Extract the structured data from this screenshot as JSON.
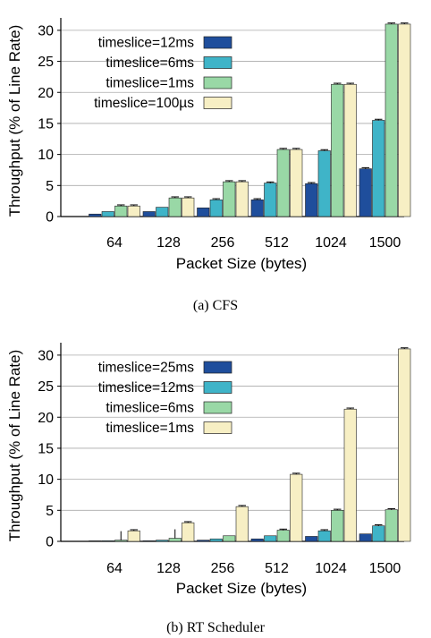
{
  "chart_data": [
    {
      "type": "bar",
      "caption": "(a) CFS",
      "xlabel": "Packet Size (bytes)",
      "ylabel": "Throughput (% of Line Rate)",
      "categories": [
        "64",
        "128",
        "256",
        "512",
        "1024",
        "1500"
      ],
      "ylim": [
        0,
        32
      ],
      "yticks": [
        0,
        5,
        10,
        15,
        20,
        25,
        30
      ],
      "grid": true,
      "legend_position": "top-left",
      "series": [
        {
          "name": "timeslice=12ms",
          "values": [
            0.4,
            0.8,
            1.4,
            2.7,
            5.3,
            7.7
          ]
        },
        {
          "name": "timeslice=6ms",
          "values": [
            0.8,
            1.5,
            2.7,
            5.4,
            10.6,
            15.5
          ]
        },
        {
          "name": "timeslice=1ms",
          "values": [
            1.7,
            3.0,
            5.6,
            10.8,
            21.3,
            31.0
          ]
        },
        {
          "name": "timeslice=100µs",
          "values": [
            1.7,
            3.0,
            5.6,
            10.8,
            21.3,
            31.0
          ]
        }
      ]
    },
    {
      "type": "bar",
      "caption": "(b) RT Scheduler",
      "xlabel": "Packet Size (bytes)",
      "ylabel": "Throughput (% of Line Rate)",
      "categories": [
        "64",
        "128",
        "256",
        "512",
        "1024",
        "1500"
      ],
      "ylim": [
        0,
        32
      ],
      "yticks": [
        0,
        5,
        10,
        15,
        20,
        25,
        30
      ],
      "grid": true,
      "legend_position": "top-left",
      "series": [
        {
          "name": "timeslice=25ms",
          "values": [
            0.05,
            0.1,
            0.2,
            0.4,
            0.8,
            1.2
          ]
        },
        {
          "name": "timeslice=12ms",
          "values": [
            0.1,
            0.2,
            0.4,
            0.9,
            1.7,
            2.5
          ]
        },
        {
          "name": "timeslice=6ms",
          "values": [
            0.2,
            0.5,
            0.9,
            1.8,
            5.0,
            5.1
          ]
        },
        {
          "name": "timeslice=1ms",
          "values": [
            1.7,
            3.0,
            5.6,
            10.8,
            21.3,
            31.0
          ]
        }
      ]
    }
  ],
  "colors": {
    "series": [
      "#1f4e9c",
      "#3fb4c8",
      "#99d8a6",
      "#f7efc4"
    ],
    "grid": "#aaaaaa",
    "axis": "#000000"
  }
}
